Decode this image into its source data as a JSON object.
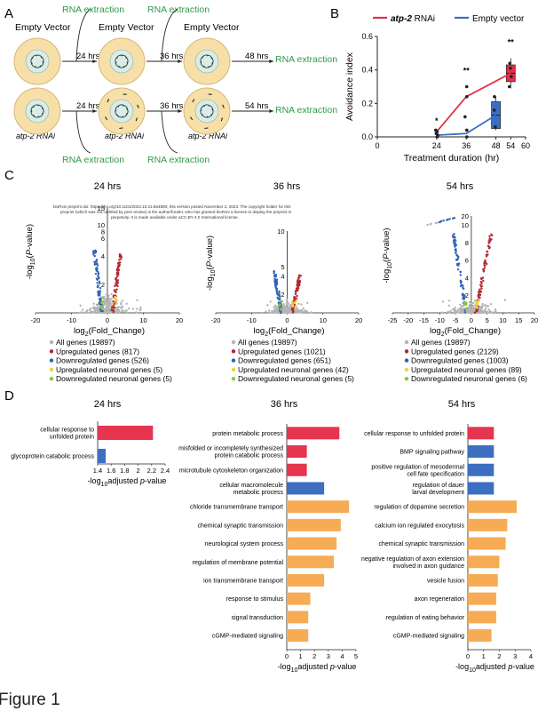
{
  "panel_labels": {
    "a": "A",
    "b": "B",
    "c": "C",
    "d": "D"
  },
  "figure_caption": "Figure 1",
  "preprint_notice": {
    "line1": "bioRxiv preprint doi: https://doi.org/10.1101/2023.10.31.564890; this version posted November 2, 2023. The copyright holder for this",
    "line2": "preprint (which was not certified by peer review) is the author/funder, who has granted bioRxiv a license to display the preprint in",
    "line3": "perpetuity. It is made available under aCC-BY 4.0 International license."
  },
  "schematic": {
    "empty_vector": "Empty Vector",
    "atp2_rnai": "atp-2 RNAi",
    "rna_extraction": "RNA extraction",
    "t24": "24 hrs",
    "t36": "36 hrs",
    "t48": "48 hrs",
    "t54": "54 hrs"
  },
  "colors": {
    "atp2": "#e0314a",
    "empty": "#3a6fc4",
    "gray": "#b4b4b4",
    "up": "#b3262f",
    "down": "#2f63b6",
    "up_neuronal": "#f0d240",
    "down_neuronal": "#8fc24a",
    "go_red": "#e5354f",
    "go_blue": "#3d6fc0",
    "go_orange": "#f5ac55",
    "green_text": "#2e9a4a",
    "plate_fill": "#f7dfa8",
    "plate_edge": "#d7b679",
    "worm_fill": "#d9ece6"
  },
  "chart_data": [
    {
      "id": "panel-b",
      "type": "line",
      "title": "",
      "xlabel": "Treatment duration (hr)",
      "ylabel": "Avoidance index",
      "xlim": [
        0,
        60
      ],
      "ylim": [
        0,
        0.6
      ],
      "xticks": [
        0,
        24,
        36,
        48,
        54,
        60
      ],
      "yticks": [
        0.0,
        0.2,
        0.4,
        0.6
      ],
      "series": [
        {
          "name": "atp-2",
          "suffix": " RNAi",
          "x": [
            24,
            36,
            54
          ],
          "y": [
            0.03,
            0.24,
            0.38
          ],
          "box": {
            "x": 54,
            "q1": 0.33,
            "q3": 0.43,
            "median": 0.38,
            "min": 0.29,
            "max": 0.47
          },
          "points": [
            [
              24,
              0.02
            ],
            [
              24,
              0.04
            ],
            [
              24,
              0.03
            ],
            [
              36,
              0.12
            ],
            [
              36,
              0.24
            ],
            [
              36,
              0.3
            ],
            [
              54,
              0.3
            ],
            [
              54,
              0.36
            ],
            [
              54,
              0.41
            ],
            [
              54,
              0.44
            ]
          ]
        },
        {
          "name": "Empty vector",
          "x": [
            24,
            36,
            48
          ],
          "y": [
            0.01,
            0.02,
            0.13
          ],
          "box": {
            "x": 48,
            "q1": 0.05,
            "q3": 0.21,
            "median": 0.13,
            "min": 0.04,
            "max": 0.24
          },
          "points": [
            [
              24,
              0.0
            ],
            [
              24,
              0.01
            ],
            [
              36,
              0.0
            ],
            [
              36,
              0.04
            ],
            [
              48,
              0.06
            ],
            [
              48,
              0.16
            ],
            [
              48,
              0.24
            ]
          ]
        }
      ],
      "annotations": [
        {
          "x": 24,
          "text": "*",
          "y": 0.08
        },
        {
          "x": 36,
          "text": "**",
          "y": 0.38
        },
        {
          "x": 54,
          "text": "**",
          "y": 0.55
        }
      ]
    },
    {
      "id": "volcano-24",
      "type": "scatter",
      "title": "24 hrs",
      "xlabel": "log2(Fold_Change)",
      "ylabel": "-log10(P-value)",
      "xlim": [
        -20,
        20
      ],
      "ylim": [
        0,
        15
      ],
      "xticks": [
        -20,
        -10,
        0,
        10,
        20
      ],
      "yticks": [
        0,
        2,
        4,
        6,
        8,
        10,
        15
      ],
      "legend": [
        "All genes (19897)",
        "Upregulated genes (817)",
        "Downregulated genes (526)",
        "Upregulated neuronal genes (5)",
        "Downregulated neuronal genes (5)"
      ]
    },
    {
      "id": "volcano-36",
      "type": "scatter",
      "title": "36 hrs",
      "xlabel": "log2(Fold_Change)",
      "ylabel": "-log10(P-value)",
      "xlim": [
        -20,
        20
      ],
      "ylim": [
        0,
        10
      ],
      "xticks": [
        -20,
        -10,
        0,
        10,
        20
      ],
      "yticks": [
        0,
        2,
        4,
        5,
        10
      ],
      "legend": [
        "All genes (19897)",
        "Upregulated genes (1021)",
        "Downregulated genes (651)",
        "Upregulated neuronal genes (42)",
        "Downregulated neuronal genes (5)"
      ]
    },
    {
      "id": "volcano-54",
      "type": "scatter",
      "title": "54 hrs",
      "xlabel": "log2(Fold_Change)",
      "ylabel": "-log10(P-value)",
      "xlim": [
        -25,
        20
      ],
      "ylim": [
        0,
        20
      ],
      "xticks": [
        -25,
        -20,
        -15,
        -10,
        -5,
        0,
        5,
        10,
        15,
        20
      ],
      "yticks": [
        0,
        2,
        4,
        6,
        8,
        10,
        20
      ],
      "legend": [
        "All genes (19897)",
        "Upregulated genes (2129)",
        "Downregulated genes (1003)",
        "Upregulated neuronal genes (89)",
        "Downregulated neuronal genes (6)"
      ]
    },
    {
      "id": "go-24",
      "type": "bar",
      "title": "24 hrs",
      "xlabel_pre": "-log",
      "xlabel_sub": "10",
      "xlabel_post": "adjusted ",
      "xlabel_it": "p",
      "xlabel_end": "-value",
      "xlim": [
        1.4,
        2.4
      ],
      "xticks": [
        1.4,
        1.6,
        1.8,
        2.0,
        2.2,
        2.4
      ],
      "categories": [
        [
          "cellular response to",
          "unfolded protein"
        ],
        [
          "glycoprotein catabolic process"
        ]
      ],
      "values": [
        2.22,
        1.52
      ],
      "bar_colors": [
        "red",
        "blue"
      ]
    },
    {
      "id": "go-36",
      "type": "bar",
      "title": "36 hrs",
      "xlim": [
        0,
        5
      ],
      "xticks": [
        0,
        1,
        2,
        3,
        4,
        5
      ],
      "categories": [
        [
          "protein metabolic process"
        ],
        [
          "misfolded or incompletely synthesized",
          "protein catabolic process"
        ],
        [
          "microtubule cytoskeleton organization"
        ],
        [
          "cellular macromolecule",
          "metabolic process"
        ],
        [
          "chloride transmembrane transport"
        ],
        [
          "chemical synaptic transmission"
        ],
        [
          "neurological system process"
        ],
        [
          "regulation of membrane potential"
        ],
        [
          "ion transmembrane transport"
        ],
        [
          "response to stimulus"
        ],
        [
          "signal transduction"
        ],
        [
          "cGMP-mediated signaling"
        ]
      ],
      "values": [
        3.8,
        1.45,
        1.45,
        2.7,
        4.5,
        3.9,
        3.6,
        3.4,
        2.7,
        1.7,
        1.55,
        1.55
      ],
      "bar_colors": [
        "red",
        "red",
        "red",
        "blue",
        "orange",
        "orange",
        "orange",
        "orange",
        "orange",
        "orange",
        "orange",
        "orange"
      ]
    },
    {
      "id": "go-54",
      "type": "bar",
      "title": "54 hrs",
      "xlim": [
        0,
        4
      ],
      "xticks": [
        0,
        1,
        2,
        3,
        4
      ],
      "categories": [
        [
          "cellular response to unfolded protein"
        ],
        [
          "BMP signaling pathway"
        ],
        [
          "positive regulation of mesodermal",
          "cell fate specification"
        ],
        [
          "regulation of dauer",
          "larval development"
        ],
        [
          "regulation of dopamine secretion"
        ],
        [
          "calcium ion regulated exocytosis"
        ],
        [
          "chemical synaptic transmission"
        ],
        [
          "negative regulation of axon extension",
          "involved in axon guidance"
        ],
        [
          "vesicle fusion"
        ],
        [
          "axon regeneration"
        ],
        [
          "regulation of eating behavior"
        ],
        [
          "cGMP-mediated signaling"
        ]
      ],
      "values": [
        1.65,
        1.65,
        1.65,
        1.65,
        3.1,
        2.5,
        2.4,
        2.0,
        1.9,
        1.8,
        1.8,
        1.5
      ],
      "bar_colors": [
        "red",
        "blue",
        "blue",
        "blue",
        "orange",
        "orange",
        "orange",
        "orange",
        "orange",
        "orange",
        "orange",
        "orange"
      ]
    }
  ]
}
